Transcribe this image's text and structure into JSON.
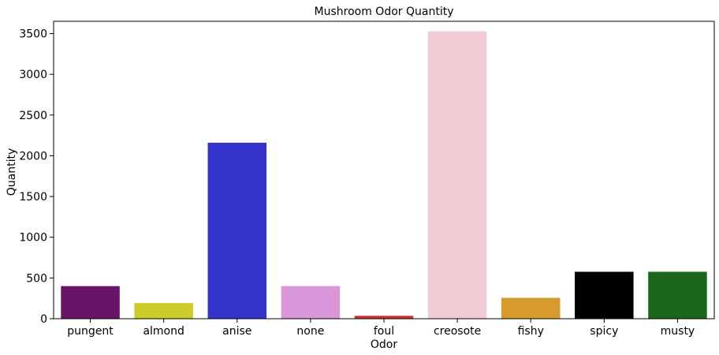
{
  "chart_data": {
    "type": "bar",
    "title": "Mushroom Odor Quantity",
    "xlabel": "Odor",
    "ylabel": "Quantity",
    "ylim": [
      0,
      3650
    ],
    "yticks": [
      0,
      500,
      1000,
      1500,
      2000,
      2500,
      3000,
      3500
    ],
    "categories": [
      "pungent",
      "almond",
      "anise",
      "none",
      "foul",
      "creosote",
      "fishy",
      "spicy",
      "musty"
    ],
    "values": [
      400,
      192,
      2160,
      400,
      36,
      3528,
      256,
      576,
      576
    ],
    "colors": [
      "#671567",
      "#cccc2a",
      "#3333cc",
      "#d996d9",
      "#cc3333",
      "#f2ccd5",
      "#d99a2d",
      "#000000",
      "#1a661a"
    ],
    "grid": false,
    "legend": "none"
  }
}
